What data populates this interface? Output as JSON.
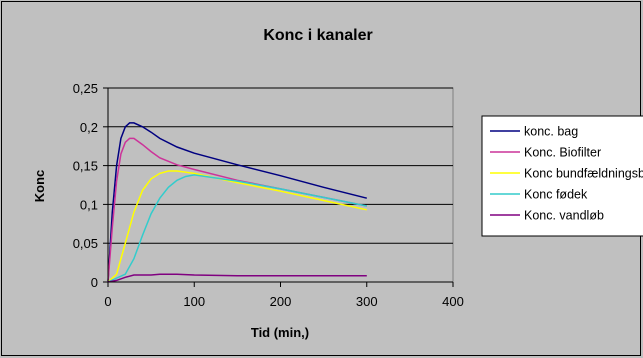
{
  "chart_data": {
    "type": "line",
    "title": "Konc i kanaler",
    "xlabel": "Tid (min,)",
    "ylabel": "Konc",
    "xlim": [
      0,
      400
    ],
    "ylim": [
      0,
      0.25
    ],
    "x_ticks": [
      "0",
      "100",
      "200",
      "300",
      "400"
    ],
    "y_ticks": [
      "0",
      "0,05",
      "0,1",
      "0,15",
      "0,2",
      "0,25"
    ],
    "grid": "horizontal",
    "legend_position": "right",
    "plot_background": "#c0c0c0",
    "series": [
      {
        "name": "konc. bag",
        "color": "#000080",
        "points": [
          [
            0,
            0
          ],
          [
            5,
            0.09
          ],
          [
            10,
            0.15
          ],
          [
            15,
            0.185
          ],
          [
            20,
            0.2
          ],
          [
            25,
            0.205
          ],
          [
            30,
            0.205
          ],
          [
            40,
            0.2
          ],
          [
            50,
            0.193
          ],
          [
            60,
            0.185
          ],
          [
            80,
            0.174
          ],
          [
            100,
            0.166
          ],
          [
            150,
            0.151
          ],
          [
            200,
            0.137
          ],
          [
            250,
            0.122
          ],
          [
            300,
            0.108
          ]
        ]
      },
      {
        "name": "Konc. Biofilter",
        "color": "#cc3399",
        "points": [
          [
            0,
            0
          ],
          [
            5,
            0.07
          ],
          [
            10,
            0.13
          ],
          [
            15,
            0.165
          ],
          [
            20,
            0.18
          ],
          [
            25,
            0.185
          ],
          [
            30,
            0.185
          ],
          [
            40,
            0.177
          ],
          [
            50,
            0.168
          ],
          [
            60,
            0.16
          ],
          [
            80,
            0.151
          ],
          [
            100,
            0.145
          ],
          [
            150,
            0.131
          ],
          [
            200,
            0.12
          ],
          [
            250,
            0.109
          ],
          [
            300,
            0.098
          ]
        ]
      },
      {
        "name": "Konc bundfældningsbassin",
        "color": "#ffff00",
        "points": [
          [
            0,
            0
          ],
          [
            10,
            0.01
          ],
          [
            20,
            0.05
          ],
          [
            30,
            0.09
          ],
          [
            40,
            0.118
          ],
          [
            50,
            0.133
          ],
          [
            60,
            0.14
          ],
          [
            70,
            0.143
          ],
          [
            80,
            0.143
          ],
          [
            100,
            0.14
          ],
          [
            150,
            0.128
          ],
          [
            200,
            0.117
          ],
          [
            250,
            0.105
          ],
          [
            300,
            0.093
          ]
        ]
      },
      {
        "name": "Konc fødek",
        "color": "#33cccc",
        "points": [
          [
            0,
            0
          ],
          [
            20,
            0.01
          ],
          [
            30,
            0.03
          ],
          [
            40,
            0.06
          ],
          [
            50,
            0.088
          ],
          [
            60,
            0.108
          ],
          [
            70,
            0.122
          ],
          [
            80,
            0.131
          ],
          [
            90,
            0.136
          ],
          [
            100,
            0.138
          ],
          [
            150,
            0.13
          ],
          [
            200,
            0.12
          ],
          [
            250,
            0.109
          ],
          [
            300,
            0.098
          ]
        ]
      },
      {
        "name": "Konc. vandløb",
        "color": "#800080",
        "points": [
          [
            0,
            0
          ],
          [
            10,
            0.002
          ],
          [
            20,
            0.006
          ],
          [
            30,
            0.009
          ],
          [
            40,
            0.009
          ],
          [
            50,
            0.009
          ],
          [
            60,
            0.01
          ],
          [
            80,
            0.01
          ],
          [
            100,
            0.009
          ],
          [
            150,
            0.008
          ],
          [
            200,
            0.008
          ],
          [
            250,
            0.008
          ],
          [
            300,
            0.008
          ]
        ]
      }
    ]
  }
}
